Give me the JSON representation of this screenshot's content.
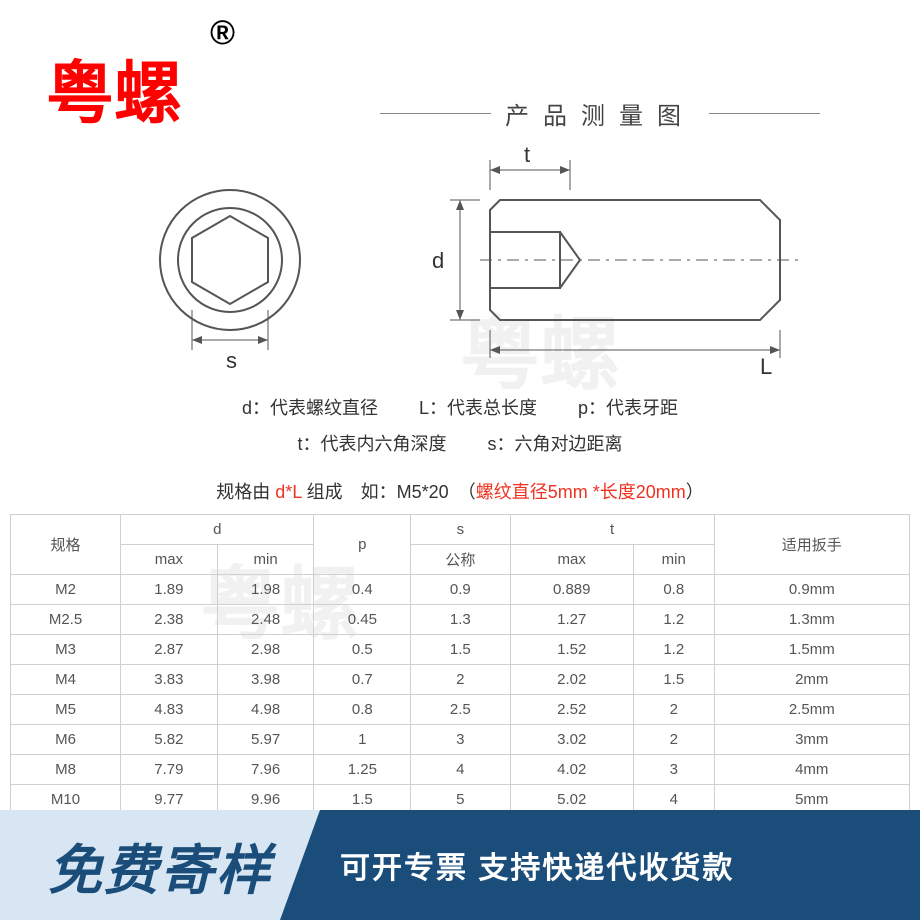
{
  "brand": "粤螺",
  "reg_mark": "®",
  "section_title": "产品测量图",
  "diagram": {
    "s_label": "s",
    "t_label": "t",
    "d_label": "d",
    "L_label": "L",
    "stroke": "#666666",
    "fill": "#ffffff"
  },
  "legend": {
    "d": "d：代表螺纹直径",
    "L": "L：代表总长度",
    "p": "p：代表牙距",
    "t": "t：代表内六角深度",
    "s": "s：六角对边距离"
  },
  "spec_line": {
    "p1": "规格由 ",
    "p2": "d*L",
    "p3": " 组成　如：M5*20　（",
    "p4": "螺纹直径5mm *长度20mm",
    "p5": "）"
  },
  "table": {
    "headers": {
      "spec": "规格",
      "d": "d",
      "p": "p",
      "s": "s",
      "t": "t",
      "wrench": "适用扳手",
      "max": "max",
      "min": "min",
      "nominal": "公称"
    },
    "rows": [
      {
        "spec": "M2",
        "dmax": "1.89",
        "dmin": "1.98",
        "p": "0.4",
        "s": "0.9",
        "tmax": "0.889",
        "tmin": "0.8",
        "w": "0.9mm"
      },
      {
        "spec": "M2.5",
        "dmax": "2.38",
        "dmin": "2.48",
        "p": "0.45",
        "s": "1.3",
        "tmax": "1.27",
        "tmin": "1.2",
        "w": "1.3mm"
      },
      {
        "spec": "M3",
        "dmax": "2.87",
        "dmin": "2.98",
        "p": "0.5",
        "s": "1.5",
        "tmax": "1.52",
        "tmin": "1.2",
        "w": "1.5mm"
      },
      {
        "spec": "M4",
        "dmax": "3.83",
        "dmin": "3.98",
        "p": "0.7",
        "s": "2",
        "tmax": "2.02",
        "tmin": "1.5",
        "w": "2mm"
      },
      {
        "spec": "M5",
        "dmax": "4.83",
        "dmin": "4.98",
        "p": "0.8",
        "s": "2.5",
        "tmax": "2.52",
        "tmin": "2",
        "w": "2.5mm"
      },
      {
        "spec": "M6",
        "dmax": "5.82",
        "dmin": "5.97",
        "p": "1",
        "s": "3",
        "tmax": "3.02",
        "tmin": "2",
        "w": "3mm"
      },
      {
        "spec": "M8",
        "dmax": "7.79",
        "dmin": "7.96",
        "p": "1.25",
        "s": "4",
        "tmax": "4.02",
        "tmin": "3",
        "w": "4mm"
      },
      {
        "spec": "M10",
        "dmax": "9.77",
        "dmin": "9.96",
        "p": "1.5",
        "s": "5",
        "tmax": "5.02",
        "tmin": "4",
        "w": "5mm"
      }
    ]
  },
  "watermark": "粤螺",
  "banner": {
    "left": "免费寄样",
    "right": "可开专票 支持快递代收货款",
    "left_bg": "#d7e6f2",
    "right_bg": "#1b4d7a",
    "left_color": "#1b4d7a",
    "right_color": "#ffffff"
  }
}
